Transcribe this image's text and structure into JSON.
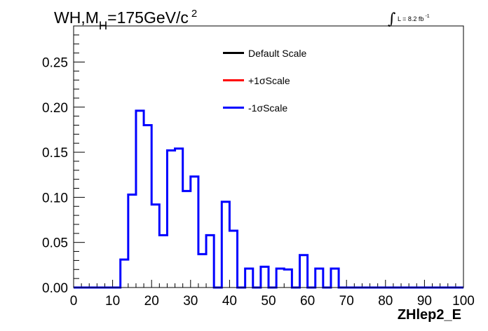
{
  "title": {
    "main": "WH,M",
    "sub": "H",
    "rest": "=175GeV/c",
    "sup": "2"
  },
  "lumi": {
    "integral": "∫",
    "text": "L = 8.2 fb",
    "sup": "-1"
  },
  "legend": [
    {
      "label": "Default Scale",
      "color": "#000000"
    },
    {
      "label": "+1σScale",
      "color": "#ff0000"
    },
    {
      "label": "-1σScale",
      "color": "#0000ff"
    }
  ],
  "chart_data": {
    "type": "histogram",
    "xlabel": "ZHlep2_E",
    "xlim": [
      0,
      100
    ],
    "ylim": [
      0,
      0.29
    ],
    "xticks": [
      "0",
      "10",
      "20",
      "30",
      "40",
      "50",
      "60",
      "70",
      "80",
      "90",
      "100"
    ],
    "yticks": [
      "0.00",
      "0.05",
      "0.10",
      "0.15",
      "0.20",
      "0.25"
    ],
    "bin_width": 2,
    "bin_edges_start": 0,
    "series": [
      {
        "name": "-1σScale",
        "color": "#0000ff",
        "values": [
          0,
          0,
          0,
          0,
          0,
          0,
          0.031,
          0.103,
          0.196,
          0.18,
          0.092,
          0.058,
          0.152,
          0.154,
          0.107,
          0.123,
          0.037,
          0.058,
          0,
          0.095,
          0.063,
          0,
          0.021,
          0,
          0.023,
          0,
          0.021,
          0.02,
          0,
          0.036,
          0,
          0.021,
          0,
          0.021,
          0,
          0,
          0,
          0,
          0,
          0,
          0,
          0,
          0,
          0,
          0,
          0,
          0,
          0,
          0,
          0
        ]
      }
    ]
  }
}
